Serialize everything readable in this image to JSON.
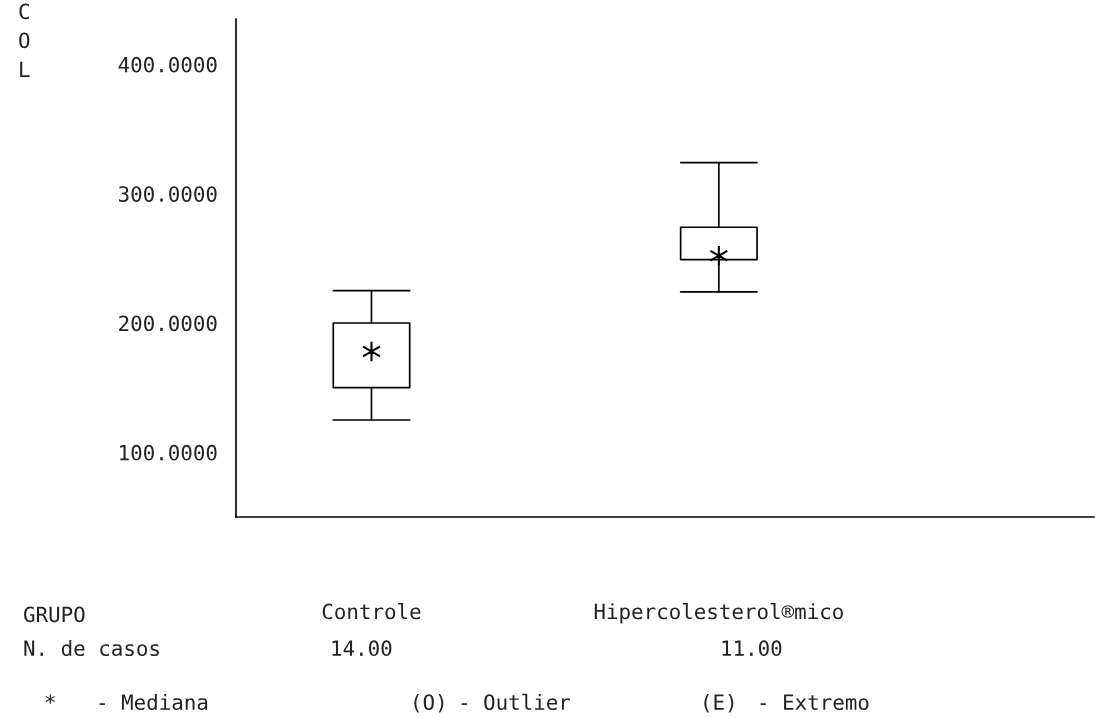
{
  "chart_data": {
    "type": "box",
    "xlabel": "GRUPO",
    "ylabel": "C\nO\nL",
    "categories": [
      "Controle",
      "Hipercolesterol®mico"
    ],
    "boxes": [
      {
        "low": 125,
        "q1": 150,
        "median": 178,
        "q3": 200,
        "high": 225
      },
      {
        "low": 224,
        "q1": 249,
        "median": 252,
        "q3": 274,
        "high": 324
      }
    ],
    "color": "#000000",
    "ylim": [
      50,
      435
    ],
    "yticks": [
      {
        "value": 100,
        "label": "100.0000"
      },
      {
        "value": 200,
        "label": "200.0000"
      },
      {
        "value": 300,
        "label": "300.0000"
      },
      {
        "value": 400,
        "label": "400.0000"
      }
    ],
    "annotations": [
      "N. de casos",
      "14.00",
      "11.00",
      "*",
      "- Mediana",
      "(O)",
      "- Outlier",
      "(E)",
      "- Extremo"
    ],
    "grid": false,
    "legend": false
  }
}
